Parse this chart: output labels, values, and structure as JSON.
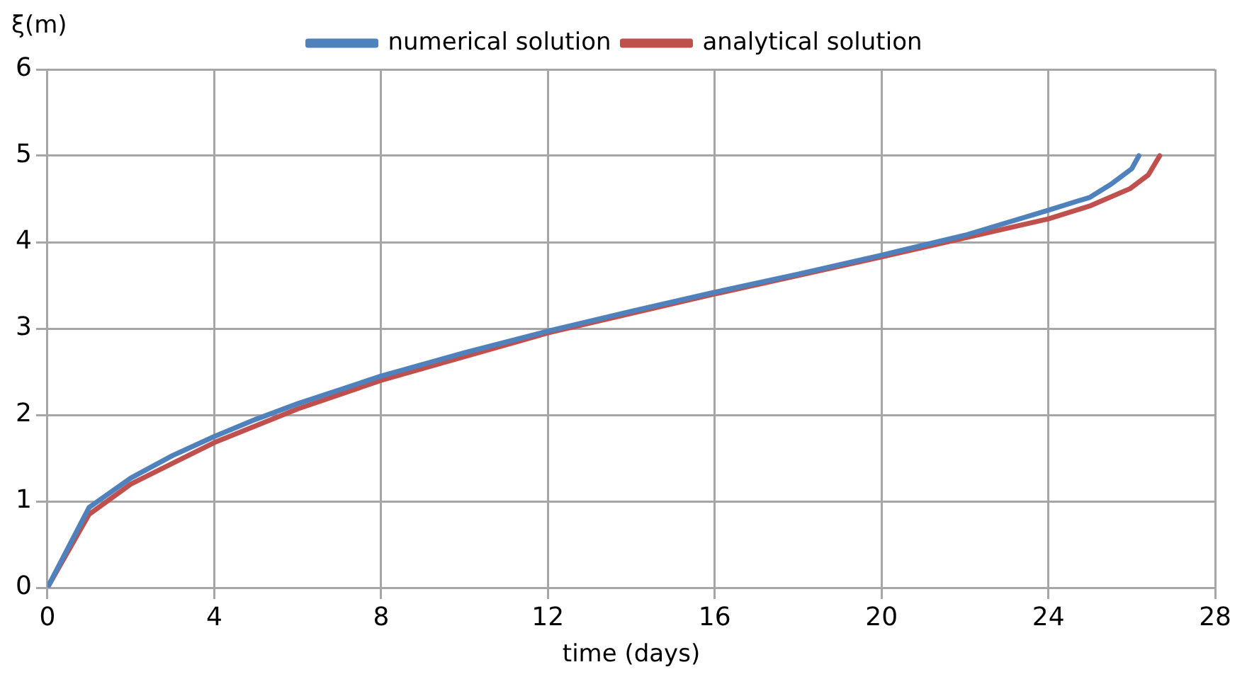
{
  "chart_data": {
    "type": "line",
    "xlabel": "time (days)",
    "ylabel": "ξ(m)",
    "xlim": [
      0,
      28
    ],
    "xticks": [
      0,
      4,
      8,
      12,
      16,
      20,
      24,
      28
    ],
    "ylim": [
      0,
      6
    ],
    "yticks": [
      0,
      1,
      2,
      3,
      4,
      5,
      6
    ],
    "grid": true,
    "legend": "top",
    "marker": "none",
    "line_style": "solid",
    "series": [
      {
        "name": "numerical solution",
        "color": "#4f81bd",
        "x": [
          0,
          1,
          2,
          3,
          4,
          5,
          6,
          8,
          10,
          12,
          14,
          16,
          18,
          20,
          22,
          24,
          25,
          25.5,
          26,
          26.17
        ],
        "values": [
          0,
          0.93,
          1.27,
          1.53,
          1.75,
          1.95,
          2.13,
          2.45,
          2.72,
          2.97,
          3.2,
          3.42,
          3.63,
          3.85,
          4.08,
          4.37,
          4.52,
          4.67,
          4.85,
          5.0
        ]
      },
      {
        "name": "analytical solution",
        "color": "#c0504d",
        "x": [
          0,
          1,
          2,
          4,
          6,
          8,
          12,
          16,
          20,
          24,
          25,
          25.96,
          26.4,
          26.67
        ],
        "values": [
          0,
          0.85,
          1.2,
          1.68,
          2.07,
          2.4,
          2.95,
          3.4,
          3.83,
          4.27,
          4.42,
          4.62,
          4.78,
          5.0
        ]
      }
    ]
  }
}
